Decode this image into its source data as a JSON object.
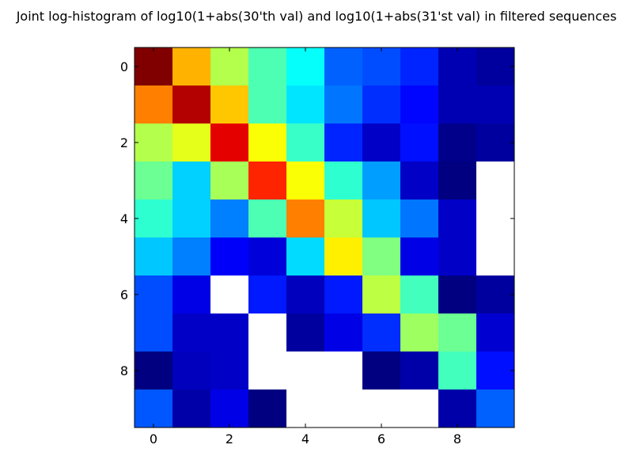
{
  "chart_data": {
    "type": "heatmap",
    "title": "Joint log-histogram of log10(1+abs(30'th val) and log10(1+abs(31'st val) in filtered sequences",
    "xlabel": "",
    "ylabel": "",
    "xticks": [
      "0",
      "2",
      "4",
      "6",
      "8"
    ],
    "yticks": [
      "0",
      "2",
      "4",
      "6",
      "8"
    ],
    "xlim": [
      -0.5,
      9.5
    ],
    "ylim": [
      9.5,
      -0.5
    ],
    "colormap": "jet",
    "vrange": [
      0,
      1
    ],
    "missing_color": "#ffffff",
    "values": [
      [
        1.0,
        0.7,
        0.55,
        0.45,
        0.38,
        0.22,
        0.2,
        0.16,
        0.05,
        0.03
      ],
      [
        0.75,
        0.95,
        0.68,
        0.45,
        0.35,
        0.24,
        0.17,
        0.13,
        0.05,
        0.05
      ],
      [
        0.55,
        0.6,
        0.9,
        0.62,
        0.43,
        0.16,
        0.07,
        0.14,
        0.01,
        0.03
      ],
      [
        0.48,
        0.33,
        0.54,
        0.84,
        0.62,
        0.42,
        0.28,
        0.07,
        0.0,
        null
      ],
      [
        0.42,
        0.33,
        0.25,
        0.45,
        0.75,
        0.57,
        0.32,
        0.24,
        0.07,
        null
      ],
      [
        0.32,
        0.25,
        0.12,
        0.09,
        0.34,
        0.64,
        0.5,
        0.1,
        0.07,
        null
      ],
      [
        0.2,
        0.1,
        null,
        0.15,
        0.06,
        0.15,
        0.56,
        0.44,
        0.0,
        0.03
      ],
      [
        0.2,
        0.07,
        0.07,
        null,
        0.03,
        0.1,
        0.17,
        0.53,
        0.48,
        0.08
      ],
      [
        0.0,
        0.06,
        0.07,
        null,
        null,
        null,
        0.0,
        0.04,
        0.44,
        0.14
      ],
      [
        0.21,
        0.04,
        0.1,
        0.0,
        null,
        null,
        null,
        null,
        0.04,
        0.22
      ]
    ]
  }
}
